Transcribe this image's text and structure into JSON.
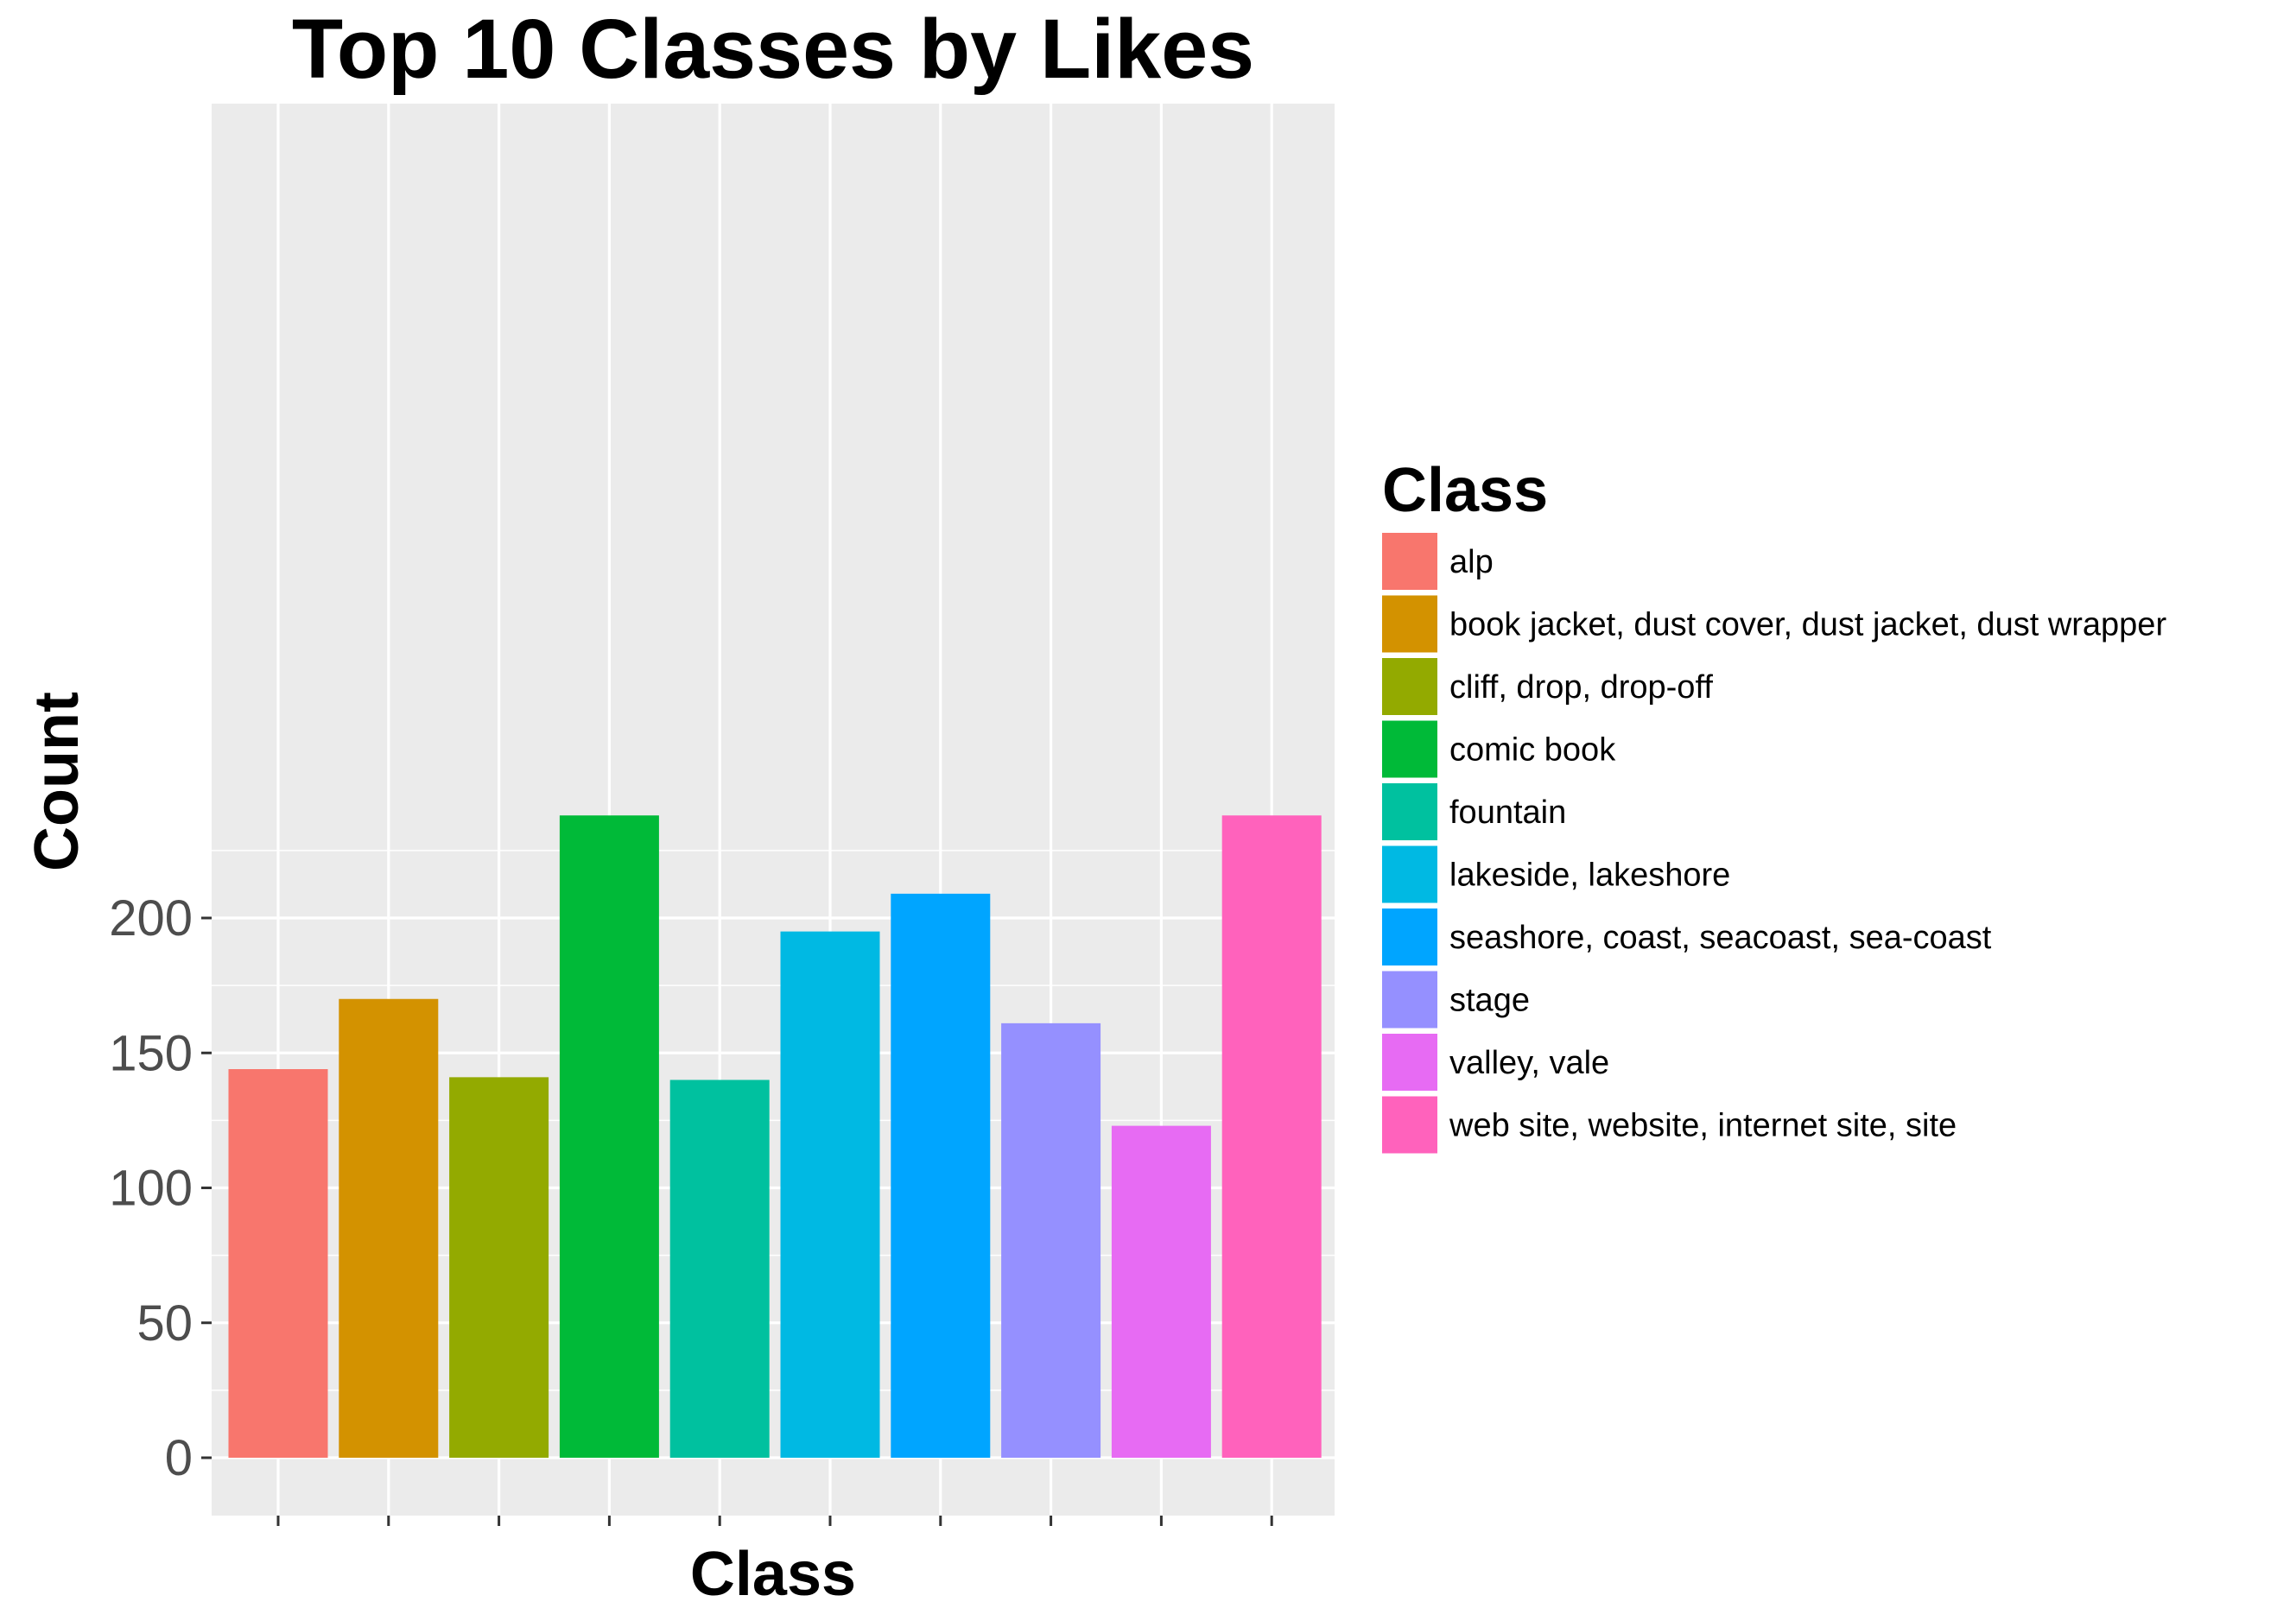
{
  "chart_data": {
    "type": "bar",
    "title": "Top 10 Classes by Likes",
    "xlabel": "Class",
    "ylabel": "Count",
    "ylim": [
      0,
      250
    ],
    "yticks": [
      0,
      50,
      100,
      150,
      200
    ],
    "grid": true,
    "legend": {
      "title": "Class",
      "placement": "right"
    },
    "categories": [
      "alp",
      "book jacket, dust cover, dust jacket, dust wrapper",
      "cliff, drop, drop-off",
      "comic book",
      "fountain",
      "lakeside, lakeshore",
      "seashore, coast, seacoast, sea-coast",
      "stage",
      "valley, vale",
      "web site, website, internet site, site"
    ],
    "values": [
      144,
      170,
      141,
      238,
      140,
      195,
      209,
      161,
      123,
      238
    ],
    "colors": [
      "#F8766D",
      "#D39200",
      "#93AA00",
      "#00BA38",
      "#00C19F",
      "#00B9E3",
      "#00A5FF",
      "#9590FF",
      "#E76BF3",
      "#FF62BC"
    ]
  }
}
